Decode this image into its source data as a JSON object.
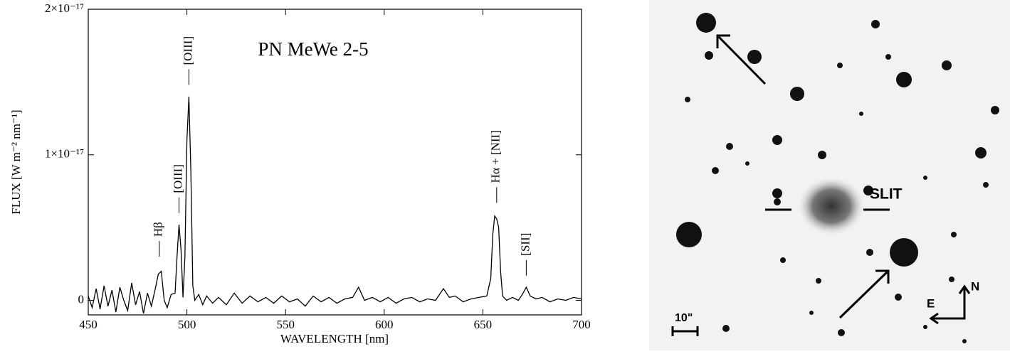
{
  "chart_data": {
    "type": "line",
    "title": "PN MeWe 2-5",
    "xlabel": "WAVELENGTH [nm]",
    "ylabel": "FLUX [W m⁻² nm⁻¹]",
    "xlim": [
      450,
      700
    ],
    "xticks": [
      450,
      500,
      550,
      600,
      650,
      700
    ],
    "ylim": [
      -1e-18,
      2e-17
    ],
    "yticks": [
      0,
      {
        "value": 1e-17,
        "label": "1×10⁻¹⁷"
      },
      {
        "value": 2e-17,
        "label": "2×10⁻¹⁷"
      }
    ],
    "color": "#000000",
    "x": [
      450,
      452,
      454,
      456,
      458,
      460,
      462,
      464,
      466,
      468,
      470,
      472,
      474,
      476,
      478,
      480,
      482,
      484,
      485.5,
      487,
      488.5,
      490,
      492,
      494,
      495,
      496,
      497,
      498,
      499,
      500,
      501,
      502,
      503,
      504,
      506,
      508,
      510,
      513,
      516,
      520,
      524,
      528,
      532,
      536,
      540,
      544,
      548,
      552,
      556,
      560,
      564,
      568,
      572,
      576,
      580,
      584,
      587,
      590,
      594,
      598,
      602,
      606,
      610,
      614,
      618,
      622,
      626,
      630,
      633,
      636,
      640,
      644,
      648,
      652,
      654,
      655,
      656,
      657,
      658,
      659,
      660,
      662,
      665,
      668,
      670,
      672,
      674,
      677,
      680,
      684,
      688,
      692,
      696,
      700
    ],
    "values": [
      3e-19,
      -5e-19,
      8e-19,
      -6e-19,
      1e-18,
      -4e-19,
      7e-19,
      -8e-19,
      9e-19,
      0.0,
      -7e-19,
      1.2e-18,
      -3e-19,
      6e-19,
      -9e-19,
      5e-19,
      -4e-19,
      8e-19,
      1.8e-18,
      2e-18,
      0.0,
      -5e-19,
      4e-19,
      5e-19,
      3e-18,
      5.2e-18,
      3.5e-18,
      2e-19,
      3e-18,
      1.1e-17,
      1.4e-17,
      9e-18,
      1e-18,
      0.0,
      4e-19,
      -3e-19,
      3e-19,
      -2e-19,
      2e-19,
      -3e-19,
      5e-19,
      -2e-19,
      3e-19,
      -1e-19,
      2e-19,
      -2e-19,
      3e-19,
      -1e-19,
      1e-19,
      -4e-19,
      3e-19,
      -1e-19,
      2e-19,
      -2e-19,
      1e-19,
      2e-19,
      9e-19,
      0.0,
      2e-19,
      -1e-19,
      2e-19,
      -2e-19,
      1e-19,
      2e-19,
      -1e-19,
      1e-19,
      0.0,
      8e-19,
      2e-19,
      3e-19,
      -1e-19,
      1e-19,
      2e-19,
      3e-19,
      1.5e-18,
      4.5e-18,
      5.8e-18,
      5.6e-18,
      5e-18,
      2e-18,
      3e-19,
      0.0,
      2e-19,
      0.0,
      4e-19,
      9e-19,
      3e-19,
      1e-19,
      2e-19,
      -1e-19,
      1e-19,
      0.0,
      2e-19,
      1e-19
    ],
    "annotations": [
      {
        "text": "Hβ",
        "x": 486,
        "y": 3e-18
      },
      {
        "text": "[OIII]",
        "x": 496,
        "y": 6e-18
      },
      {
        "text": "[OIII]",
        "x": 501,
        "y": 1.48e-17
      },
      {
        "text": "Hα + [NII]",
        "x": 657,
        "y": 6.7e-18
      },
      {
        "text": "[SII]",
        "x": 672,
        "y": 1.7e-18
      }
    ]
  },
  "image": {
    "slit_label": "SLIT",
    "scale_label": "10\"",
    "east": "E",
    "north": "N"
  }
}
